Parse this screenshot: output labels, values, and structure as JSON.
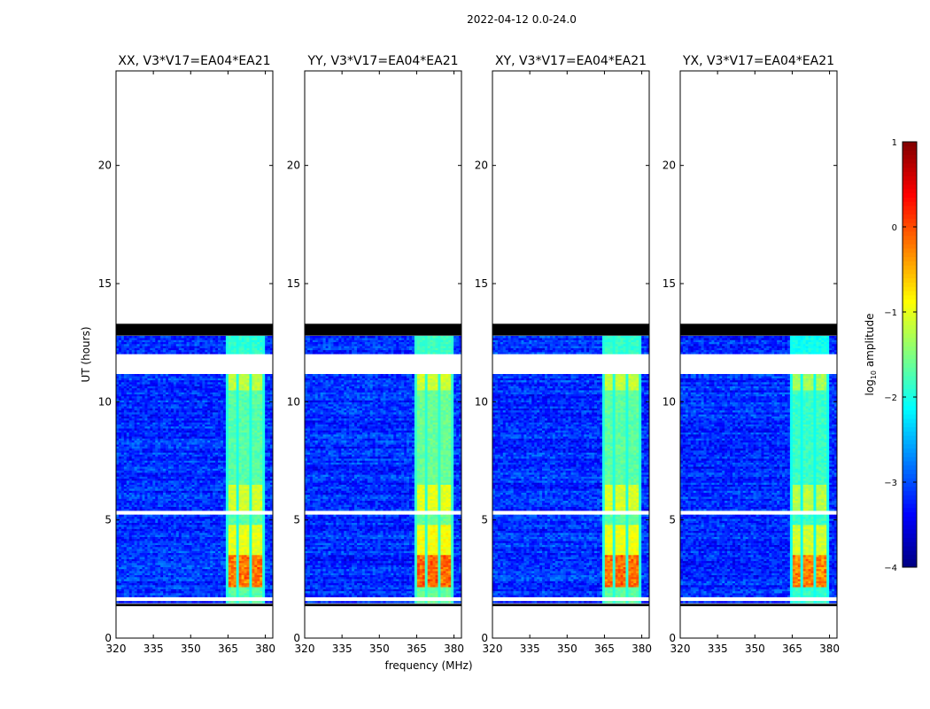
{
  "chart_data": {
    "type": "heatmap",
    "suptitle": "2022-04-12 0.0-24.0",
    "xlabel": "frequency (MHz)",
    "ylabel": "UT (hours)",
    "xlim": [
      320,
      383
    ],
    "ylim": [
      0,
      24
    ],
    "x_ticks": [
      320,
      335,
      350,
      365,
      380
    ],
    "y_ticks": [
      0,
      5,
      10,
      15,
      20
    ],
    "panels": [
      {
        "title": "XX, V3*V17=EA04*EA21",
        "strength": 1.0
      },
      {
        "title": "YY, V3*V17=EA04*EA21",
        "strength": 1.15
      },
      {
        "title": "XY, V3*V17=EA04*EA21",
        "strength": 1.05
      },
      {
        "title": "YX, V3*V17=EA04*EA21",
        "strength": 0.9
      }
    ],
    "observed_ut_range": [
      1.4,
      13.3
    ],
    "flagged_black_ut": [
      [
        12.8,
        13.3
      ],
      [
        1.35,
        1.45
      ]
    ],
    "gaps_white_ut": [
      [
        11.2,
        12.0
      ],
      [
        5.25,
        5.4
      ],
      [
        1.55,
        1.7
      ]
    ],
    "bright_band_mhz": [
      364,
      380
    ],
    "colorbar": {
      "label": "log10 amplitude",
      "min": -4,
      "max": 1,
      "ticks": [
        1,
        0,
        -1,
        -2,
        -3,
        -4
      ],
      "tick_labels": [
        "1",
        "0",
        "−1",
        "−2",
        "−3",
        "−4"
      ],
      "colormap": "jet"
    }
  }
}
